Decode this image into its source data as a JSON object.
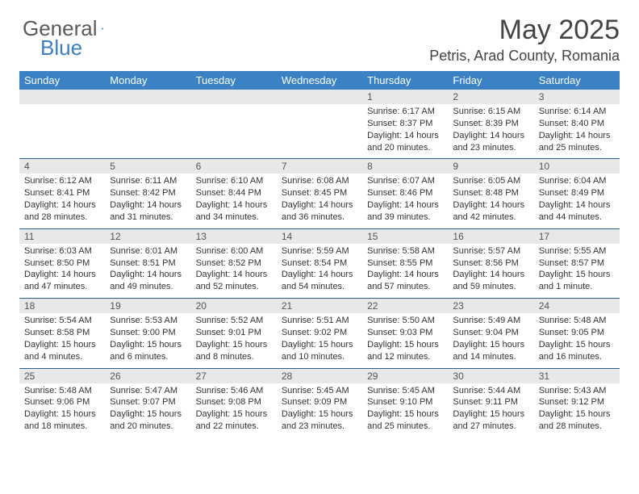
{
  "logo": {
    "text1": "General",
    "text2": "Blue",
    "tri_color": "#3b7fc4"
  },
  "title": "May 2025",
  "location": "Petris, Arad County, Romania",
  "header_bg": "#3b82c4",
  "daynum_bg": "#e8e8e8",
  "border_color": "#2d5f8f",
  "weekdays": [
    "Sunday",
    "Monday",
    "Tuesday",
    "Wednesday",
    "Thursday",
    "Friday",
    "Saturday"
  ],
  "weeks": [
    [
      null,
      null,
      null,
      null,
      {
        "n": "1",
        "sr": "6:17 AM",
        "ss": "8:37 PM",
        "dl": "14 hours and 20 minutes."
      },
      {
        "n": "2",
        "sr": "6:15 AM",
        "ss": "8:39 PM",
        "dl": "14 hours and 23 minutes."
      },
      {
        "n": "3",
        "sr": "6:14 AM",
        "ss": "8:40 PM",
        "dl": "14 hours and 25 minutes."
      }
    ],
    [
      {
        "n": "4",
        "sr": "6:12 AM",
        "ss": "8:41 PM",
        "dl": "14 hours and 28 minutes."
      },
      {
        "n": "5",
        "sr": "6:11 AM",
        "ss": "8:42 PM",
        "dl": "14 hours and 31 minutes."
      },
      {
        "n": "6",
        "sr": "6:10 AM",
        "ss": "8:44 PM",
        "dl": "14 hours and 34 minutes."
      },
      {
        "n": "7",
        "sr": "6:08 AM",
        "ss": "8:45 PM",
        "dl": "14 hours and 36 minutes."
      },
      {
        "n": "8",
        "sr": "6:07 AM",
        "ss": "8:46 PM",
        "dl": "14 hours and 39 minutes."
      },
      {
        "n": "9",
        "sr": "6:05 AM",
        "ss": "8:48 PM",
        "dl": "14 hours and 42 minutes."
      },
      {
        "n": "10",
        "sr": "6:04 AM",
        "ss": "8:49 PM",
        "dl": "14 hours and 44 minutes."
      }
    ],
    [
      {
        "n": "11",
        "sr": "6:03 AM",
        "ss": "8:50 PM",
        "dl": "14 hours and 47 minutes."
      },
      {
        "n": "12",
        "sr": "6:01 AM",
        "ss": "8:51 PM",
        "dl": "14 hours and 49 minutes."
      },
      {
        "n": "13",
        "sr": "6:00 AM",
        "ss": "8:52 PM",
        "dl": "14 hours and 52 minutes."
      },
      {
        "n": "14",
        "sr": "5:59 AM",
        "ss": "8:54 PM",
        "dl": "14 hours and 54 minutes."
      },
      {
        "n": "15",
        "sr": "5:58 AM",
        "ss": "8:55 PM",
        "dl": "14 hours and 57 minutes."
      },
      {
        "n": "16",
        "sr": "5:57 AM",
        "ss": "8:56 PM",
        "dl": "14 hours and 59 minutes."
      },
      {
        "n": "17",
        "sr": "5:55 AM",
        "ss": "8:57 PM",
        "dl": "15 hours and 1 minute."
      }
    ],
    [
      {
        "n": "18",
        "sr": "5:54 AM",
        "ss": "8:58 PM",
        "dl": "15 hours and 4 minutes."
      },
      {
        "n": "19",
        "sr": "5:53 AM",
        "ss": "9:00 PM",
        "dl": "15 hours and 6 minutes."
      },
      {
        "n": "20",
        "sr": "5:52 AM",
        "ss": "9:01 PM",
        "dl": "15 hours and 8 minutes."
      },
      {
        "n": "21",
        "sr": "5:51 AM",
        "ss": "9:02 PM",
        "dl": "15 hours and 10 minutes."
      },
      {
        "n": "22",
        "sr": "5:50 AM",
        "ss": "9:03 PM",
        "dl": "15 hours and 12 minutes."
      },
      {
        "n": "23",
        "sr": "5:49 AM",
        "ss": "9:04 PM",
        "dl": "15 hours and 14 minutes."
      },
      {
        "n": "24",
        "sr": "5:48 AM",
        "ss": "9:05 PM",
        "dl": "15 hours and 16 minutes."
      }
    ],
    [
      {
        "n": "25",
        "sr": "5:48 AM",
        "ss": "9:06 PM",
        "dl": "15 hours and 18 minutes."
      },
      {
        "n": "26",
        "sr": "5:47 AM",
        "ss": "9:07 PM",
        "dl": "15 hours and 20 minutes."
      },
      {
        "n": "27",
        "sr": "5:46 AM",
        "ss": "9:08 PM",
        "dl": "15 hours and 22 minutes."
      },
      {
        "n": "28",
        "sr": "5:45 AM",
        "ss": "9:09 PM",
        "dl": "15 hours and 23 minutes."
      },
      {
        "n": "29",
        "sr": "5:45 AM",
        "ss": "9:10 PM",
        "dl": "15 hours and 25 minutes."
      },
      {
        "n": "30",
        "sr": "5:44 AM",
        "ss": "9:11 PM",
        "dl": "15 hours and 27 minutes."
      },
      {
        "n": "31",
        "sr": "5:43 AM",
        "ss": "9:12 PM",
        "dl": "15 hours and 28 minutes."
      }
    ]
  ],
  "labels": {
    "sunrise": "Sunrise:",
    "sunset": "Sunset:",
    "daylight": "Daylight:"
  }
}
